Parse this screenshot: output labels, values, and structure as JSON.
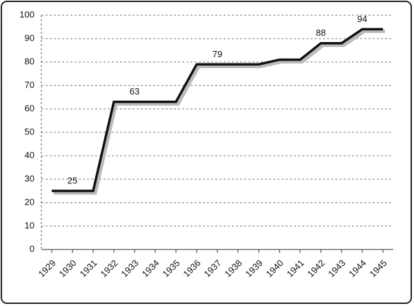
{
  "chart_data": {
    "type": "line",
    "categories": [
      "1929",
      "1930",
      "1931",
      "1932",
      "1933",
      "1934",
      "1935",
      "1936",
      "1937",
      "1938",
      "1939",
      "1940",
      "1941",
      "1942",
      "1943",
      "1944",
      "1945"
    ],
    "series": [
      {
        "color": "#111111",
        "values": [
          25,
          25,
          25,
          63,
          63,
          63,
          63,
          79,
          79,
          79,
          79,
          81,
          81,
          88,
          88,
          94,
          94
        ]
      }
    ],
    "data_labels_at": [
      1,
      4,
      8,
      13,
      15
    ],
    "ylim": [
      0,
      100
    ],
    "yticks": [
      0,
      10,
      20,
      30,
      40,
      50,
      60,
      70,
      80,
      90,
      100
    ],
    "grid": true
  }
}
